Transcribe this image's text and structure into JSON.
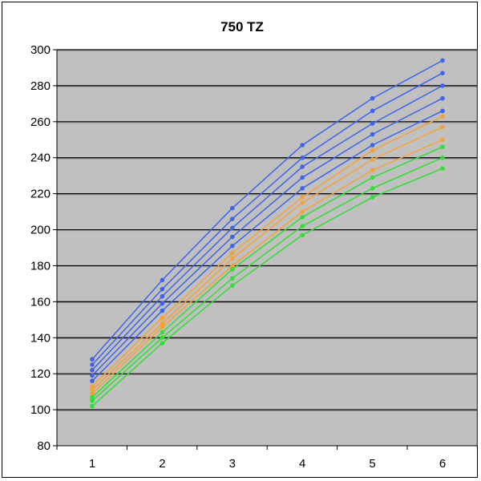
{
  "chart_data": {
    "type": "line",
    "title": "750 TZ",
    "xlabel": "",
    "ylabel": "",
    "x": [
      1,
      2,
      3,
      4,
      5,
      6
    ],
    "x_tick_labels": [
      "1",
      "2",
      "3",
      "4",
      "5",
      "6"
    ],
    "ylim": [
      80,
      300
    ],
    "y_ticks": [
      80,
      100,
      120,
      140,
      160,
      180,
      200,
      220,
      240,
      260,
      280,
      300
    ],
    "grid": "horizontal",
    "legend": "none",
    "plot_background": "#c0c0c0",
    "series": [
      {
        "color": "#3f64e8",
        "values": [
          128,
          172,
          212,
          247,
          273,
          294
        ]
      },
      {
        "color": "#3f64e8",
        "values": [
          125,
          167,
          206,
          240,
          266,
          287
        ]
      },
      {
        "color": "#3f64e8",
        "values": [
          122,
          163,
          201,
          235,
          259,
          280
        ]
      },
      {
        "color": "#3f64e8",
        "values": [
          119,
          159,
          196,
          229,
          253,
          273
        ]
      },
      {
        "color": "#3f64e8",
        "values": [
          116,
          155,
          191,
          223,
          247,
          266
        ]
      },
      {
        "color": "#f4a23c",
        "values": [
          113,
          151,
          187,
          218,
          244,
          263
        ]
      },
      {
        "color": "#f4a23c",
        "values": [
          111,
          148,
          184,
          215,
          239,
          257
        ]
      },
      {
        "color": "#f4a23c",
        "values": [
          109,
          146,
          180,
          210,
          233,
          250
        ]
      },
      {
        "color": "#33dd33",
        "values": [
          107,
          143,
          178,
          207,
          229,
          246
        ]
      },
      {
        "color": "#33dd33",
        "values": [
          105,
          140,
          173,
          202,
          223,
          240
        ]
      },
      {
        "color": "#33dd33",
        "values": [
          102,
          137,
          169,
          197,
          218,
          234
        ]
      }
    ]
  }
}
